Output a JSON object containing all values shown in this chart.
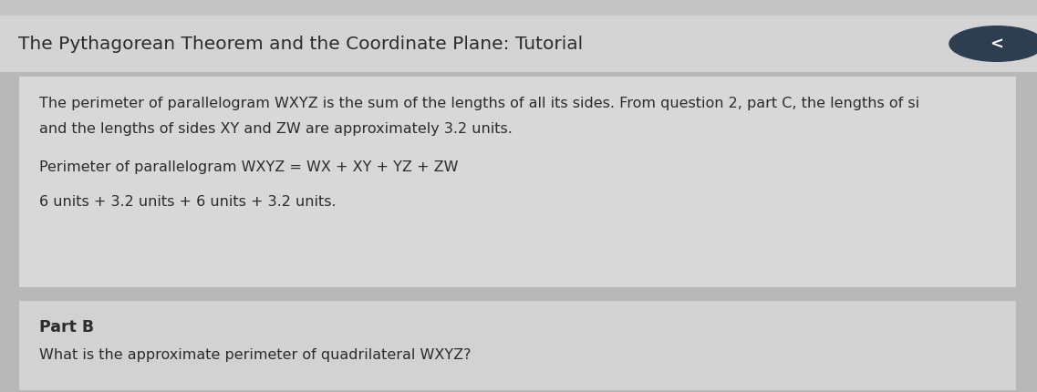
{
  "title": "The Pythagorean Theorem and the Coordinate Plane: Tutorial",
  "title_color": "#2c2c2c",
  "title_fontsize": 14.5,
  "title_bg_color": "#dcdcdc",
  "paragraph1_line1": "The perimeter of parallelogram WXYZ is the sum of the lengths of all its sides. From question 2, part C, the lengths of si",
  "paragraph1_line2": "and the lengths of sides XY and ZW are approximately 3.2 units.",
  "paragraph2": "Perimeter of parallelogram WXYZ = WX + XY + YZ + ZW",
  "paragraph3": "6 units + 3.2 units + 6 units + 3.2 units.",
  "part_b_label": "Part B",
  "part_b_question": "What is the approximate perimeter of quadrilateral WXYZ?",
  "text_color": "#2c2c2c",
  "body_fontsize": 11.5,
  "part_b_label_fontsize": 12.5,
  "outer_bg_color": "#b8b8b8",
  "title_bar_color": "#d4d4d4",
  "upper_box_color": "#d8d8d8",
  "lower_box_color": "#d2d2d2",
  "separator_color": "#a0a0a0",
  "circle_color": "#2c3e50",
  "circle_text": "<",
  "circle_text_color": "#ffffff",
  "fig_width": 11.37,
  "fig_height": 4.31,
  "dpi": 100
}
